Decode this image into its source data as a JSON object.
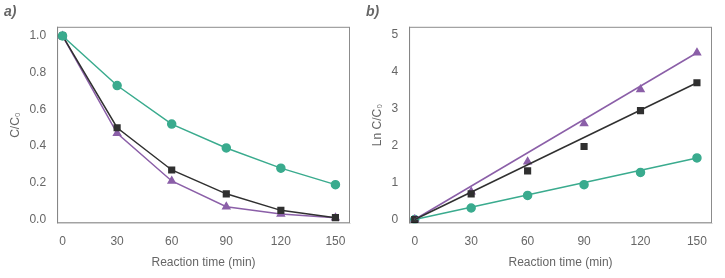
{
  "chart_data": [
    {
      "type": "line",
      "title": "a)",
      "x_label": "Reaction time (min)",
      "y_label": "C/C₀",
      "x": [
        0,
        30,
        60,
        90,
        120,
        150
      ],
      "series": [
        {
          "color": "#3aab8e",
          "marker": "circle",
          "values": [
            1.0,
            0.73,
            0.52,
            0.39,
            0.28,
            0.19
          ]
        },
        {
          "color": "#303030",
          "marker": "square",
          "values": [
            1.0,
            0.5,
            0.27,
            0.14,
            0.05,
            0.01
          ]
        },
        {
          "color": "#8b5fa8",
          "marker": "triangle",
          "values": [
            1.0,
            0.47,
            0.21,
            0.07,
            0.03,
            0.01
          ]
        }
      ],
      "xlim": [
        -3,
        158
      ],
      "xticks": [
        0,
        30,
        60,
        90,
        120,
        150
      ],
      "ylim": [
        -0.02,
        1.05
      ],
      "yticks": [
        {
          "value": 0,
          "label": "0.0"
        },
        0.2,
        0.4,
        0.6,
        0.8,
        {
          "value": 1,
          "label": "1.0"
        }
      ],
      "grid": false
    },
    {
      "type": "scatter",
      "title": "b)",
      "x_label": "Reaction time (min)",
      "y_label": "Ln C/C₀",
      "x": [
        0,
        30,
        60,
        90,
        120,
        150
      ],
      "series": [
        {
          "type": "line",
          "color": "#303030",
          "x": [
            0,
            150
          ],
          "values": [
            0,
            3.69
          ]
        },
        {
          "type": "line",
          "color": "#8b5fa8",
          "x": [
            0,
            150
          ],
          "values": [
            0,
            4.5
          ]
        },
        {
          "type": "line",
          "color": "#3aab8e",
          "x": [
            0,
            150
          ],
          "values": [
            0,
            1.6605
          ]
        },
        {
          "type": "scatter",
          "color": "#303030",
          "marker": "square",
          "values": [
            0.0,
            0.69,
            1.31,
            1.97,
            2.94,
            3.69
          ]
        },
        {
          "type": "scatter",
          "color": "#8b5fa8",
          "marker": "triangle",
          "values": [
            0.0,
            0.75,
            1.56,
            2.59,
            3.51,
            4.5
          ]
        },
        {
          "type": "scatter",
          "color": "#3aab8e",
          "marker": "circle",
          "values": [
            0.0,
            0.31,
            0.65,
            0.94,
            1.27,
            1.66
          ]
        }
      ],
      "xlim": [
        -3,
        158
      ],
      "xticks": [
        0,
        30,
        60,
        90,
        120,
        150
      ],
      "ylim": [
        -0.1,
        5.2
      ],
      "yticks": [
        0,
        1,
        2,
        3,
        4,
        5
      ],
      "grid": false
    }
  ]
}
